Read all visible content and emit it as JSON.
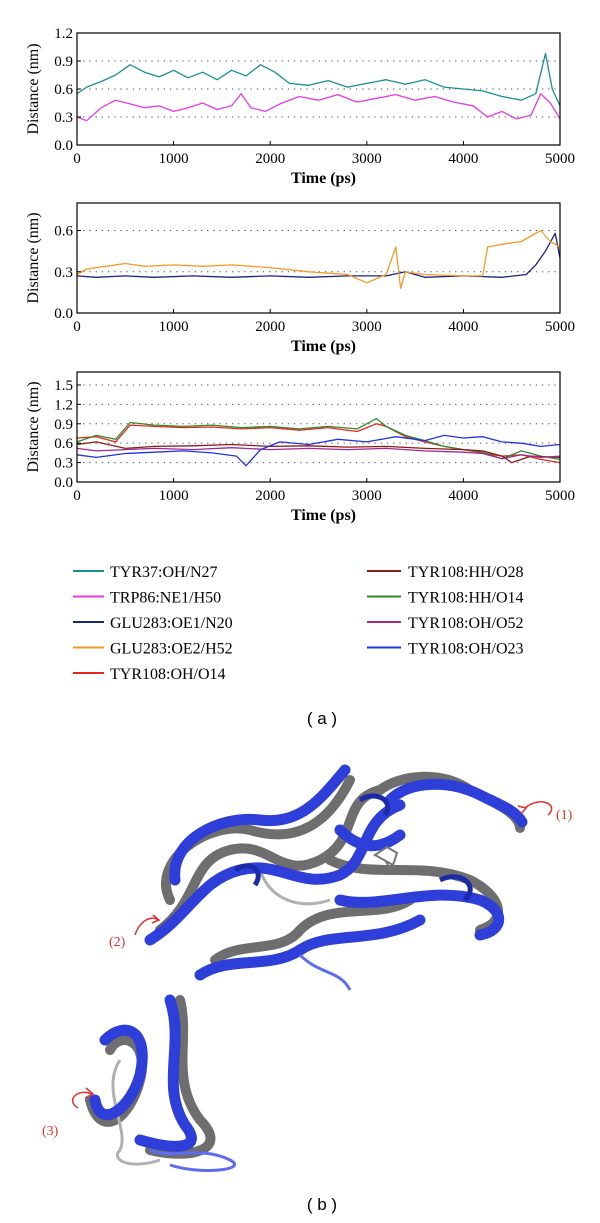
{
  "figure": {
    "panel_a_label": "( a )",
    "panel_b_label": "( b )",
    "callouts": [
      "(1)",
      "(2)",
      "(3)"
    ]
  },
  "legend": [
    {
      "key": "s1",
      "label": "TYR37:OH/N27",
      "color": "#1a8f8f"
    },
    {
      "key": "s2",
      "label": "TRP86:NE1/H50",
      "color": "#e53be5"
    },
    {
      "key": "s3",
      "label": "GLU283:OE1/N20",
      "color": "#1a237e"
    },
    {
      "key": "s4",
      "label": "GLU283:OE2/H52",
      "color": "#f59a2a"
    },
    {
      "key": "s5",
      "label": "TYR108:OH/O14",
      "color": "#e8261f"
    },
    {
      "key": "s6",
      "label": "TYR108:HH/O28",
      "color": "#8b1a1a"
    },
    {
      "key": "s7",
      "label": "TYR108:HH/O14",
      "color": "#2e8b2e"
    },
    {
      "key": "s8",
      "label": "TYR108:OH/O52",
      "color": "#9c2a8f"
    },
    {
      "key": "s9",
      "label": "TYR108:OH/O23",
      "color": "#2233dd"
    }
  ],
  "chart_data": [
    {
      "type": "line",
      "xlabel": "Time (ps)",
      "ylabel": "Distance (nm)",
      "xlim": [
        0,
        5000
      ],
      "ylim": [
        0,
        1.2
      ],
      "xticks": [
        0,
        1000,
        2000,
        3000,
        4000,
        5000
      ],
      "yticks": [
        0.0,
        0.3,
        0.6,
        0.9,
        1.2
      ],
      "ytick_labels": [
        "0.0",
        "0.3",
        "0.6",
        "0.9",
        "1.2"
      ],
      "grid": "dotted horizontal",
      "series": [
        {
          "key": "s1",
          "x": [
            0,
            100,
            250,
            400,
            550,
            700,
            850,
            1000,
            1150,
            1300,
            1450,
            1600,
            1750,
            1900,
            2050,
            2200,
            2400,
            2600,
            2800,
            3000,
            3200,
            3400,
            3600,
            3800,
            4000,
            4200,
            4400,
            4600,
            4750,
            4850,
            4920,
            5000
          ],
          "values": [
            0.55,
            0.62,
            0.68,
            0.75,
            0.86,
            0.78,
            0.73,
            0.8,
            0.72,
            0.78,
            0.7,
            0.8,
            0.74,
            0.86,
            0.78,
            0.66,
            0.64,
            0.69,
            0.62,
            0.66,
            0.7,
            0.65,
            0.7,
            0.62,
            0.6,
            0.58,
            0.52,
            0.48,
            0.55,
            0.98,
            0.6,
            0.42
          ]
        },
        {
          "key": "s2",
          "x": [
            0,
            100,
            250,
            400,
            550,
            700,
            850,
            1000,
            1150,
            1300,
            1450,
            1600,
            1700,
            1800,
            1950,
            2100,
            2300,
            2500,
            2700,
            2900,
            3100,
            3300,
            3500,
            3700,
            3900,
            4100,
            4250,
            4400,
            4550,
            4700,
            4800,
            4900,
            5000
          ],
          "values": [
            0.3,
            0.26,
            0.4,
            0.48,
            0.44,
            0.4,
            0.42,
            0.36,
            0.4,
            0.45,
            0.38,
            0.42,
            0.55,
            0.4,
            0.36,
            0.44,
            0.52,
            0.48,
            0.54,
            0.46,
            0.5,
            0.54,
            0.48,
            0.52,
            0.46,
            0.42,
            0.3,
            0.36,
            0.28,
            0.32,
            0.55,
            0.45,
            0.28
          ]
        }
      ]
    },
    {
      "type": "line",
      "xlabel": "Time (ps)",
      "ylabel": "Distance (nm)",
      "xlim": [
        0,
        5000
      ],
      "ylim": [
        0,
        0.8
      ],
      "xticks": [
        0,
        1000,
        2000,
        3000,
        4000,
        5000
      ],
      "yticks": [
        0.0,
        0.3,
        0.6
      ],
      "ytick_labels": [
        "0.0",
        "0.3",
        "0.6"
      ],
      "grid": "dotted horizontal",
      "series": [
        {
          "key": "s3",
          "x": [
            0,
            200,
            500,
            800,
            1200,
            1600,
            2000,
            2400,
            2800,
            3200,
            3400,
            3600,
            4000,
            4400,
            4650,
            4750,
            4850,
            4950,
            5000
          ],
          "values": [
            0.27,
            0.26,
            0.27,
            0.26,
            0.27,
            0.26,
            0.27,
            0.26,
            0.27,
            0.27,
            0.3,
            0.26,
            0.27,
            0.26,
            0.28,
            0.35,
            0.45,
            0.58,
            0.4
          ]
        },
        {
          "key": "s4",
          "x": [
            0,
            100,
            300,
            500,
            700,
            1000,
            1300,
            1600,
            2000,
            2400,
            2800,
            3000,
            3200,
            3300,
            3350,
            3400,
            3600,
            4000,
            4200,
            4250,
            4400,
            4600,
            4800,
            4900,
            5000
          ],
          "values": [
            0.28,
            0.32,
            0.34,
            0.36,
            0.34,
            0.35,
            0.34,
            0.35,
            0.33,
            0.3,
            0.28,
            0.22,
            0.28,
            0.48,
            0.18,
            0.3,
            0.28,
            0.27,
            0.27,
            0.48,
            0.5,
            0.52,
            0.6,
            0.52,
            0.48
          ]
        }
      ]
    },
    {
      "type": "line",
      "xlabel": "Time (ps)",
      "ylabel": "Distance (nm)",
      "xlim": [
        0,
        5000
      ],
      "ylim": [
        0,
        1.7
      ],
      "xticks": [
        0,
        1000,
        2000,
        3000,
        4000,
        5000
      ],
      "yticks": [
        0.0,
        0.3,
        0.6,
        0.9,
        1.2,
        1.5
      ],
      "ytick_labels": [
        "0.0",
        "0.3",
        "0.6",
        "0.9",
        "1.2",
        "1.5"
      ],
      "grid": "dotted horizontal",
      "series": [
        {
          "key": "s5",
          "x": [
            0,
            200,
            400,
            550,
            800,
            1100,
            1400,
            1700,
            2000,
            2300,
            2600,
            2900,
            3100,
            3200,
            3400,
            3600,
            3800,
            4000,
            4200,
            4400,
            4600,
            4800,
            5000
          ],
          "values": [
            0.68,
            0.7,
            0.62,
            0.88,
            0.86,
            0.84,
            0.85,
            0.82,
            0.84,
            0.8,
            0.84,
            0.78,
            0.9,
            0.86,
            0.7,
            0.62,
            0.55,
            0.5,
            0.45,
            0.4,
            0.42,
            0.35,
            0.3
          ]
        },
        {
          "key": "s7",
          "x": [
            0,
            200,
            400,
            550,
            800,
            1100,
            1400,
            1700,
            2000,
            2300,
            2600,
            2900,
            3100,
            3200,
            3400,
            3600,
            3800,
            4000,
            4200,
            4400,
            4600,
            4800,
            5000
          ],
          "values": [
            0.62,
            0.72,
            0.66,
            0.92,
            0.88,
            0.86,
            0.88,
            0.84,
            0.86,
            0.82,
            0.86,
            0.82,
            0.98,
            0.86,
            0.72,
            0.64,
            0.55,
            0.5,
            0.46,
            0.36,
            0.48,
            0.4,
            0.35
          ]
        },
        {
          "key": "s6",
          "x": [
            0,
            200,
            500,
            800,
            1200,
            1600,
            2000,
            2400,
            2800,
            3200,
            3600,
            4000,
            4200,
            4400,
            4500,
            4700,
            5000
          ],
          "values": [
            0.58,
            0.62,
            0.52,
            0.55,
            0.56,
            0.58,
            0.55,
            0.56,
            0.54,
            0.55,
            0.52,
            0.5,
            0.48,
            0.4,
            0.3,
            0.4,
            0.38
          ]
        },
        {
          "key": "s8",
          "x": [
            0,
            200,
            500,
            800,
            1200,
            1600,
            2000,
            2400,
            2800,
            3200,
            3600,
            4000,
            4200,
            4400,
            4600,
            4800,
            5000
          ],
          "values": [
            0.52,
            0.48,
            0.5,
            0.52,
            0.5,
            0.53,
            0.5,
            0.52,
            0.5,
            0.52,
            0.48,
            0.46,
            0.44,
            0.36,
            0.42,
            0.38,
            0.4
          ]
        },
        {
          "key": "s9",
          "x": [
            0,
            200,
            500,
            800,
            1100,
            1400,
            1650,
            1750,
            1900,
            2100,
            2400,
            2700,
            3000,
            3300,
            3600,
            3800,
            4000,
            4200,
            4400,
            4600,
            4800,
            5000
          ],
          "values": [
            0.42,
            0.38,
            0.44,
            0.46,
            0.48,
            0.45,
            0.4,
            0.25,
            0.5,
            0.62,
            0.58,
            0.66,
            0.62,
            0.7,
            0.64,
            0.72,
            0.68,
            0.7,
            0.62,
            0.6,
            0.55,
            0.58
          ]
        }
      ]
    }
  ]
}
